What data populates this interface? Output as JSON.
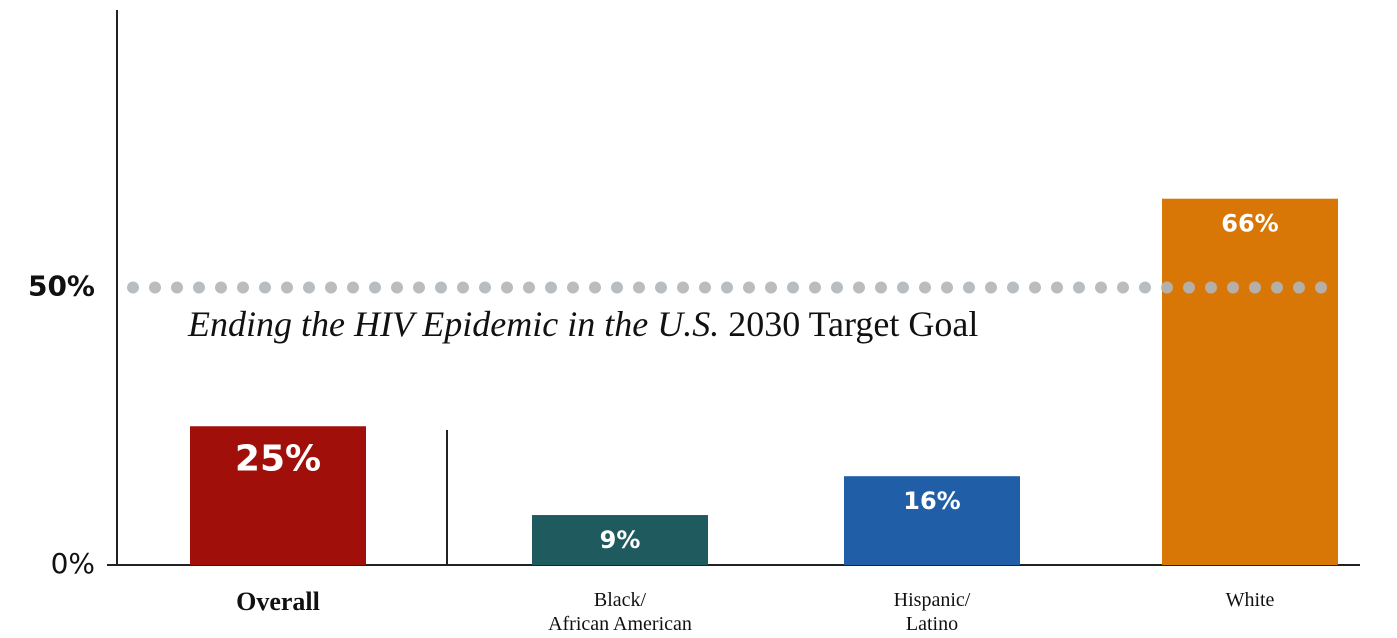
{
  "chart_data": {
    "type": "bar",
    "categories": [
      "Overall",
      "Black/\nAfrican American",
      "Hispanic/\nLatino",
      "White"
    ],
    "values": [
      25,
      9,
      16,
      66
    ],
    "value_labels": [
      "25%",
      "9%",
      "16%",
      "66%"
    ],
    "colors": [
      "#a00f0a",
      "#1f5a5e",
      "#215ea8",
      "#d97706"
    ],
    "ylim": [
      0,
      100
    ],
    "yticks": [
      {
        "value": 0,
        "label": "0%"
      },
      {
        "value": 50,
        "label": "50%"
      }
    ],
    "annotation": {
      "italic": "Ending the HIV Epidemic in the U.S.",
      "regular": "2030 Target Goal"
    }
  }
}
